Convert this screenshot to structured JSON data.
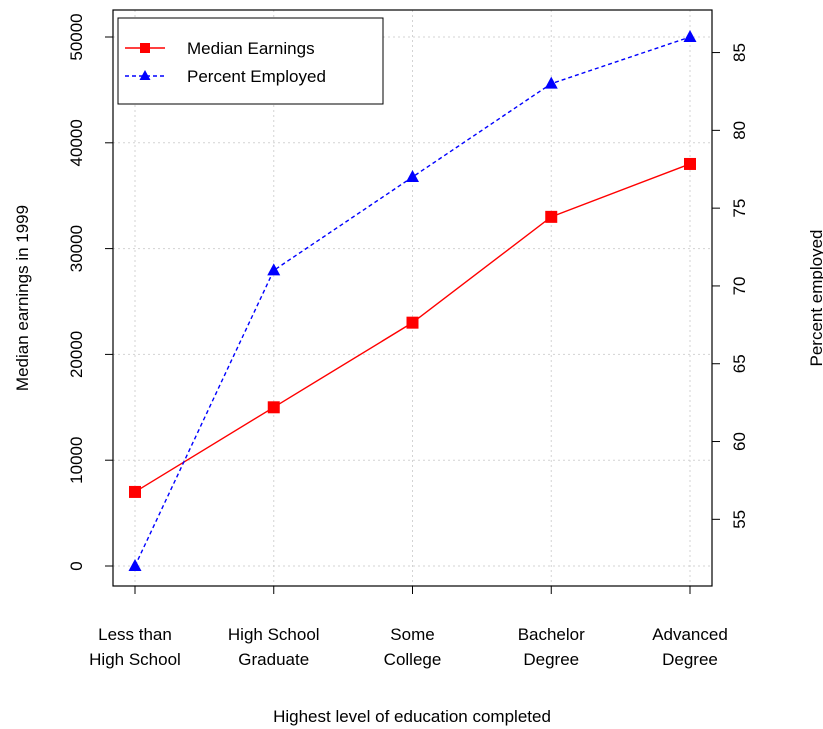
{
  "chart_data": {
    "type": "line",
    "categories": [
      [
        "Less than",
        "High School"
      ],
      [
        "High School",
        "Graduate"
      ],
      [
        "Some",
        "College"
      ],
      [
        "Bachelor",
        "Degree"
      ],
      [
        "Advanced",
        "Degree"
      ]
    ],
    "xlabel": "Highest level of education completed",
    "ylabel": "Median earnings in 1999",
    "y2label": "Percent employed",
    "ylim": [
      0,
      50000
    ],
    "y2lim": [
      52,
      86
    ],
    "yticks": [
      "0",
      "10000",
      "20000",
      "30000",
      "40000",
      "50000"
    ],
    "y2ticks": [
      "55",
      "60",
      "65",
      "70",
      "75",
      "80",
      "85"
    ],
    "grid": true,
    "legend_position": "top-left",
    "series": [
      {
        "name": "Median Earnings",
        "axis": "left",
        "color": "#ff0000",
        "marker": "square",
        "line": "solid",
        "values": [
          7000,
          15000,
          23000,
          33000,
          38000
        ]
      },
      {
        "name": "Percent Employed",
        "axis": "right",
        "color": "#0000ff",
        "marker": "triangle",
        "line": "dashed",
        "values": [
          52,
          71,
          77,
          83,
          86
        ]
      }
    ]
  }
}
